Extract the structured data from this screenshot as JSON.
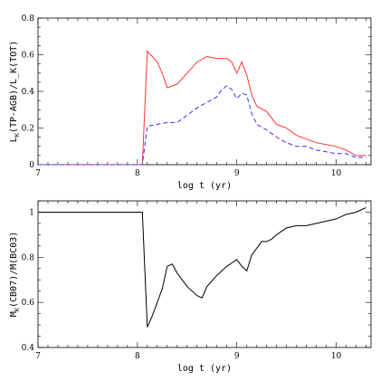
{
  "chart_data": [
    {
      "type": "line",
      "xlabel": "log t (yr)",
      "ylabel": "L_K(TP-AGB)/L_K(TOT)",
      "xlim": [
        7,
        10.35
      ],
      "ylim": [
        0,
        0.8
      ],
      "xticks": [
        7,
        8,
        9,
        10
      ],
      "yticks": [
        0,
        0.2,
        0.4,
        0.6,
        0.8
      ],
      "grid": false,
      "series": [
        {
          "color": "#ff3333",
          "dash": "solid",
          "x": [
            7.0,
            8.05,
            8.1,
            8.2,
            8.25,
            8.3,
            8.4,
            8.5,
            8.6,
            8.7,
            8.8,
            8.9,
            8.95,
            9.0,
            9.05,
            9.1,
            9.15,
            9.2,
            9.3,
            9.4,
            9.5,
            9.6,
            9.7,
            9.8,
            9.9,
            10.0,
            10.1,
            10.2,
            10.3
          ],
          "y": [
            0.0,
            0.0,
            0.62,
            0.56,
            0.5,
            0.42,
            0.44,
            0.5,
            0.56,
            0.59,
            0.58,
            0.58,
            0.56,
            0.5,
            0.56,
            0.49,
            0.38,
            0.32,
            0.29,
            0.22,
            0.2,
            0.16,
            0.14,
            0.12,
            0.11,
            0.1,
            0.08,
            0.05,
            0.05
          ]
        },
        {
          "color": "#3333ff",
          "dash": "dashed",
          "x": [
            7.0,
            8.05,
            8.1,
            8.2,
            8.3,
            8.4,
            8.5,
            8.6,
            8.7,
            8.8,
            8.85,
            8.9,
            8.95,
            9.0,
            9.05,
            9.1,
            9.15,
            9.2,
            9.3,
            9.4,
            9.5,
            9.6,
            9.7,
            9.8,
            9.9,
            10.0,
            10.1,
            10.2,
            10.3
          ],
          "y": [
            0.0,
            0.0,
            0.21,
            0.22,
            0.23,
            0.23,
            0.27,
            0.31,
            0.34,
            0.37,
            0.41,
            0.43,
            0.41,
            0.36,
            0.39,
            0.38,
            0.28,
            0.22,
            0.19,
            0.15,
            0.12,
            0.1,
            0.1,
            0.08,
            0.07,
            0.06,
            0.06,
            0.04,
            0.04
          ]
        }
      ]
    },
    {
      "type": "line",
      "xlabel": "log t (yr)",
      "ylabel": "M_K(CB07)/M(BC03)",
      "xlim": [
        7,
        10.35
      ],
      "ylim": [
        0.4,
        1.05
      ],
      "xticks": [
        7,
        8,
        9,
        10
      ],
      "yticks": [
        0.4,
        0.6,
        0.8,
        1
      ],
      "grid": false,
      "series": [
        {
          "color": "#000000",
          "dash": "solid",
          "x": [
            7.0,
            8.05,
            8.1,
            8.15,
            8.2,
            8.25,
            8.3,
            8.35,
            8.4,
            8.5,
            8.6,
            8.65,
            8.7,
            8.8,
            8.9,
            9.0,
            9.05,
            9.1,
            9.15,
            9.2,
            9.25,
            9.3,
            9.35,
            9.4,
            9.5,
            9.6,
            9.7,
            9.8,
            9.9,
            10.0,
            10.1,
            10.2,
            10.3
          ],
          "y": [
            1.0,
            1.0,
            0.49,
            0.54,
            0.6,
            0.66,
            0.76,
            0.77,
            0.73,
            0.67,
            0.63,
            0.62,
            0.67,
            0.72,
            0.76,
            0.79,
            0.76,
            0.74,
            0.81,
            0.84,
            0.87,
            0.87,
            0.88,
            0.9,
            0.93,
            0.94,
            0.94,
            0.95,
            0.96,
            0.97,
            0.99,
            1.0,
            1.02
          ]
        }
      ]
    }
  ]
}
